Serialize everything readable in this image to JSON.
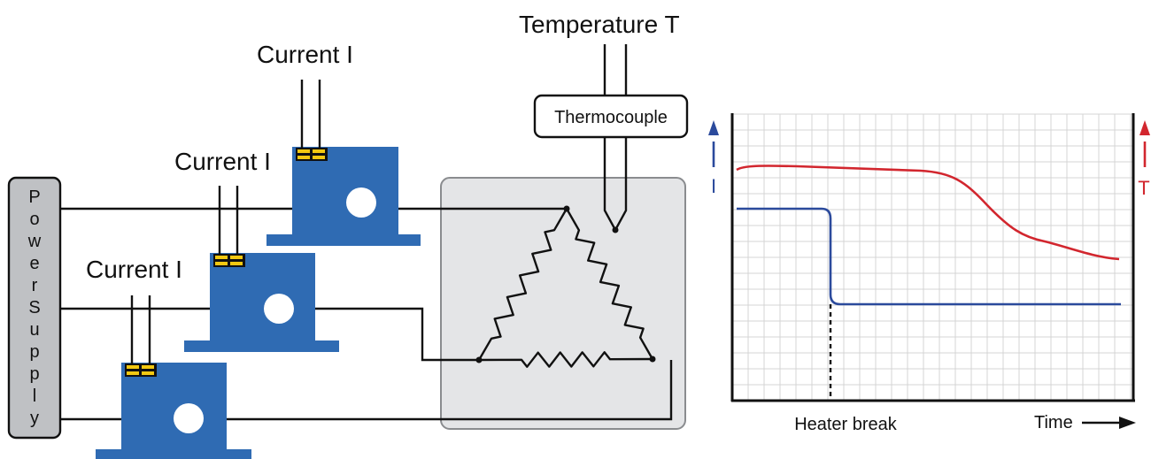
{
  "labels": {
    "temperature": "Temperature T",
    "thermocouple": "Thermocouple",
    "current_top": "Current I",
    "current_middle": "Current I",
    "current_bottom": "Current I",
    "power_supply_letters": [
      "P",
      "o",
      "w",
      "e",
      "r",
      "S",
      "u",
      "p",
      "p",
      "l",
      "y"
    ],
    "heater_break": "Heater break",
    "time": "Time",
    "left_axis": "I",
    "right_axis": "T"
  },
  "colors": {
    "sensor_blue": "#2f6bb3",
    "clip_yellow": "#f2c811",
    "current_line": "#2b4a9c",
    "temperature_line": "#d2262e",
    "furnace_fill": "#e4e5e7",
    "power_supply_fill": "#bfc1c4",
    "grid": "#d4d4d4"
  },
  "icons": {
    "sensor": "current-transformer-icon",
    "clip": "terminal-clip-icon",
    "time_arrow": "arrow-right-icon"
  }
}
